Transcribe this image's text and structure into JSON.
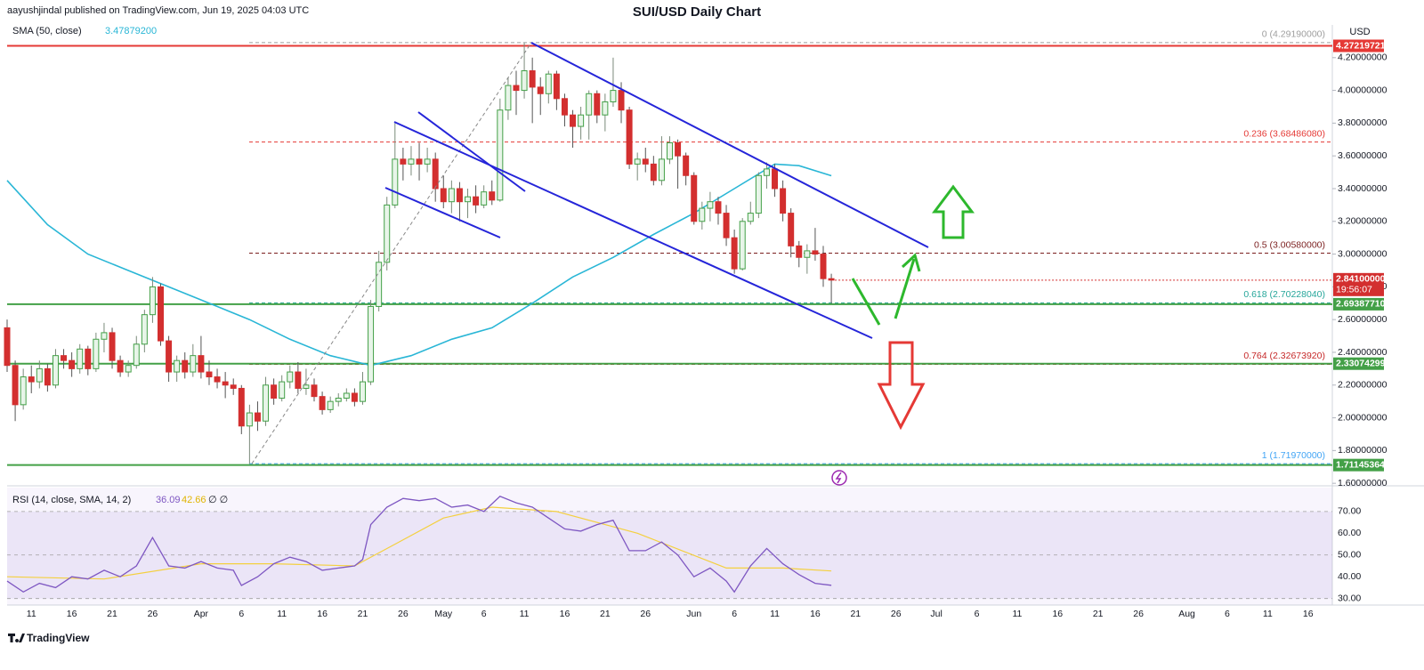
{
  "header": {
    "attribution": "aayushjindal published on TradingView.com, Jun 19, 2025 04:03 UTC",
    "currency": "USD"
  },
  "footer": {
    "brand": "TradingView"
  },
  "chart_data": {
    "type": "candlestick",
    "title": "SUI/USD Daily Chart",
    "up_color": "#43a047",
    "down_color": "#d32f2f",
    "xlim": [
      "Mar 8",
      "Aug 19"
    ],
    "xticks": [
      {
        "value": "Mar 11",
        "label": "11"
      },
      {
        "value": "Mar 16",
        "label": "16"
      },
      {
        "value": "Mar 21",
        "label": "21"
      },
      {
        "value": "Mar 26",
        "label": "26"
      },
      {
        "value": "Apr 1",
        "label": "Apr"
      },
      {
        "value": "Apr 6",
        "label": "6"
      },
      {
        "value": "Apr 11",
        "label": "11"
      },
      {
        "value": "Apr 16",
        "label": "16"
      },
      {
        "value": "Apr 21",
        "label": "21"
      },
      {
        "value": "Apr 26",
        "label": "26"
      },
      {
        "value": "May 1",
        "label": "May"
      },
      {
        "value": "May 6",
        "label": "6"
      },
      {
        "value": "May 11",
        "label": "11"
      },
      {
        "value": "May 16",
        "label": "16"
      },
      {
        "value": "May 21",
        "label": "21"
      },
      {
        "value": "May 26",
        "label": "26"
      },
      {
        "value": "Jun 1",
        "label": "Jun"
      },
      {
        "value": "Jun 6",
        "label": "6"
      },
      {
        "value": "Jun 11",
        "label": "11"
      },
      {
        "value": "Jun 16",
        "label": "16"
      },
      {
        "value": "Jun 21",
        "label": "21"
      },
      {
        "value": "Jun 26",
        "label": "26"
      },
      {
        "value": "Jul 1",
        "label": "Jul"
      },
      {
        "value": "Jul 6",
        "label": "6"
      },
      {
        "value": "Jul 11",
        "label": "11"
      },
      {
        "value": "Jul 16",
        "label": "16"
      },
      {
        "value": "Jul 21",
        "label": "21"
      },
      {
        "value": "Jul 26",
        "label": "26"
      },
      {
        "value": "Aug 1",
        "label": "Aug"
      },
      {
        "value": "Aug 6",
        "label": "6"
      },
      {
        "value": "Aug 11",
        "label": "11"
      },
      {
        "value": "Aug 16",
        "label": "16"
      }
    ],
    "ylim": [
      1.59,
      4.4
    ],
    "yticks": [
      {
        "value": 1.6,
        "label": "1.60000000"
      },
      {
        "value": 1.8,
        "label": "1.80000000"
      },
      {
        "value": 2.0,
        "label": "2.00000000"
      },
      {
        "value": 2.2,
        "label": "2.20000000"
      },
      {
        "value": 2.4,
        "label": "2.40000000"
      },
      {
        "value": 2.6,
        "label": "2.60000000"
      },
      {
        "value": 2.8,
        "label": "2.80000000"
      },
      {
        "value": 3.0,
        "label": "3.00000000"
      },
      {
        "value": 3.2,
        "label": "3.20000000"
      },
      {
        "value": 3.4,
        "label": "3.40000000"
      },
      {
        "value": 3.6,
        "label": "3.60000000"
      },
      {
        "value": 3.8,
        "label": "3.80000000"
      },
      {
        "value": 4.0,
        "label": "4.00000000"
      },
      {
        "value": 4.2,
        "label": "4.20000000"
      }
    ],
    "x": [
      "Mar 8",
      "Mar 9",
      "Mar 10",
      "Mar 11",
      "Mar 12",
      "Mar 13",
      "Mar 14",
      "Mar 15",
      "Mar 16",
      "Mar 17",
      "Mar 18",
      "Mar 19",
      "Mar 20",
      "Mar 21",
      "Mar 22",
      "Mar 23",
      "Mar 24",
      "Mar 25",
      "Mar 26",
      "Mar 27",
      "Mar 28",
      "Mar 29",
      "Mar 30",
      "Mar 31",
      "Apr 1",
      "Apr 2",
      "Apr 3",
      "Apr 4",
      "Apr 5",
      "Apr 6",
      "Apr 7",
      "Apr 8",
      "Apr 9",
      "Apr 10",
      "Apr 11",
      "Apr 12",
      "Apr 13",
      "Apr 14",
      "Apr 15",
      "Apr 16",
      "Apr 17",
      "Apr 18",
      "Apr 19",
      "Apr 20",
      "Apr 21",
      "Apr 22",
      "Apr 23",
      "Apr 24",
      "Apr 25",
      "Apr 26",
      "Apr 27",
      "Apr 28",
      "Apr 29",
      "Apr 30",
      "May 1",
      "May 2",
      "May 3",
      "May 4",
      "May 5",
      "May 6",
      "May 7",
      "May 8",
      "May 9",
      "May 10",
      "May 11",
      "May 12",
      "May 13",
      "May 14",
      "May 15",
      "May 16",
      "May 17",
      "May 18",
      "May 19",
      "May 20",
      "May 21",
      "May 22",
      "May 23",
      "May 24",
      "May 25",
      "May 26",
      "May 27",
      "May 28",
      "May 29",
      "May 30",
      "May 31",
      "Jun 1",
      "Jun 2",
      "Jun 3",
      "Jun 4",
      "Jun 5",
      "Jun 6",
      "Jun 7",
      "Jun 8",
      "Jun 9",
      "Jun 10",
      "Jun 11",
      "Jun 12",
      "Jun 13",
      "Jun 14",
      "Jun 15",
      "Jun 16",
      "Jun 17",
      "Jun 18"
    ],
    "open": [
      2.55,
      2.32,
      2.08,
      2.25,
      2.22,
      2.3,
      2.2,
      2.38,
      2.35,
      2.3,
      2.42,
      2.3,
      2.48,
      2.52,
      2.35,
      2.28,
      2.32,
      2.45,
      2.63,
      2.8,
      2.47,
      2.28,
      2.35,
      2.28,
      2.38,
      2.28,
      2.25,
      2.22,
      2.2,
      2.18,
      1.95,
      2.03,
      1.98,
      2.2,
      2.12,
      2.22,
      2.28,
      2.18,
      2.2,
      2.13,
      2.05,
      2.1,
      2.12,
      2.15,
      2.1,
      2.22,
      2.68,
      2.95,
      3.3,
      3.58,
      3.55,
      3.58,
      3.55,
      3.58,
      3.4,
      3.32,
      3.4,
      3.32,
      3.35,
      3.3,
      3.38,
      3.33,
      3.88,
      4.03,
      4.0,
      4.12,
      4.02,
      3.98,
      4.1,
      3.95,
      3.85,
      3.78,
      3.85,
      3.98,
      3.85,
      3.93,
      4.0,
      3.88,
      3.55,
      3.58,
      3.55,
      3.45,
      3.58,
      3.68,
      3.6,
      3.48,
      3.2,
      3.28,
      3.32,
      3.25,
      3.1,
      2.91,
      3.2,
      3.25,
      3.48,
      3.52,
      3.4,
      3.25,
      3.05,
      2.98,
      3.02,
      3.0,
      2.85
    ],
    "high": [
      2.6,
      2.35,
      2.3,
      2.32,
      2.35,
      2.33,
      2.42,
      2.42,
      2.4,
      2.45,
      2.44,
      2.52,
      2.58,
      2.55,
      2.38,
      2.35,
      2.5,
      2.66,
      2.86,
      2.82,
      2.5,
      2.38,
      2.4,
      2.45,
      2.5,
      2.35,
      2.3,
      2.28,
      2.24,
      2.2,
      2.08,
      2.1,
      2.25,
      2.24,
      2.26,
      2.32,
      2.34,
      2.3,
      2.24,
      2.16,
      2.13,
      2.15,
      2.18,
      2.18,
      2.28,
      2.72,
      3.02,
      3.35,
      3.8,
      3.65,
      3.66,
      3.68,
      3.65,
      3.62,
      3.48,
      3.45,
      3.44,
      3.4,
      3.42,
      3.42,
      3.45,
      3.95,
      4.08,
      4.12,
      4.29,
      4.2,
      4.08,
      4.12,
      4.12,
      3.98,
      3.88,
      3.9,
      4.0,
      4.0,
      3.98,
      4.2,
      4.05,
      3.9,
      3.62,
      3.65,
      3.6,
      3.72,
      3.72,
      3.7,
      3.62,
      3.5,
      3.32,
      3.38,
      3.35,
      3.3,
      3.15,
      3.22,
      3.32,
      3.5,
      3.56,
      3.55,
      3.45,
      3.28,
      3.08,
      3.06,
      3.16,
      3.05,
      2.88
    ],
    "low": [
      2.28,
      1.98,
      2.05,
      2.15,
      2.18,
      2.16,
      2.18,
      2.3,
      2.25,
      2.27,
      2.26,
      2.28,
      2.4,
      2.3,
      2.25,
      2.25,
      2.3,
      2.4,
      2.58,
      2.44,
      2.22,
      2.22,
      2.24,
      2.25,
      2.24,
      2.2,
      2.18,
      2.12,
      2.14,
      1.9,
      1.72,
      1.92,
      1.95,
      2.08,
      2.1,
      2.18,
      2.15,
      2.14,
      2.1,
      2.02,
      2.03,
      2.07,
      2.1,
      2.07,
      2.08,
      2.2,
      2.65,
      2.9,
      3.28,
      3.45,
      3.48,
      3.45,
      3.5,
      3.32,
      3.28,
      3.25,
      3.2,
      3.22,
      3.25,
      3.28,
      3.3,
      3.32,
      3.82,
      3.85,
      3.95,
      3.8,
      3.85,
      3.92,
      3.88,
      3.78,
      3.65,
      3.7,
      3.7,
      3.8,
      3.75,
      3.9,
      3.8,
      3.52,
      3.45,
      3.5,
      3.42,
      3.42,
      3.55,
      3.4,
      3.42,
      3.18,
      3.15,
      3.2,
      3.18,
      3.05,
      2.88,
      2.9,
      3.18,
      3.22,
      3.4,
      3.35,
      3.2,
      2.98,
      2.92,
      2.88,
      2.96,
      2.8,
      2.7
    ],
    "close": [
      2.32,
      2.08,
      2.25,
      2.22,
      2.3,
      2.2,
      2.38,
      2.35,
      2.3,
      2.42,
      2.3,
      2.48,
      2.52,
      2.35,
      2.28,
      2.32,
      2.45,
      2.63,
      2.8,
      2.47,
      2.28,
      2.35,
      2.28,
      2.38,
      2.28,
      2.25,
      2.22,
      2.2,
      2.18,
      1.95,
      2.03,
      1.98,
      2.2,
      2.12,
      2.22,
      2.28,
      2.18,
      2.2,
      2.13,
      2.05,
      2.1,
      2.12,
      2.15,
      2.1,
      2.22,
      2.68,
      2.95,
      3.3,
      3.58,
      3.55,
      3.58,
      3.55,
      3.58,
      3.4,
      3.32,
      3.4,
      3.32,
      3.35,
      3.3,
      3.38,
      3.33,
      3.88,
      4.03,
      4.0,
      4.12,
      4.02,
      3.98,
      4.1,
      3.95,
      3.85,
      3.78,
      3.85,
      3.98,
      3.85,
      3.93,
      4.0,
      3.88,
      3.55,
      3.58,
      3.55,
      3.45,
      3.58,
      3.68,
      3.6,
      3.48,
      3.2,
      3.28,
      3.32,
      3.25,
      3.1,
      2.91,
      3.2,
      3.25,
      3.48,
      3.52,
      3.4,
      3.25,
      3.05,
      2.98,
      3.02,
      3.0,
      2.85,
      2.841
    ],
    "sma": {
      "name": "SMA (50, close)",
      "value_label": "3.47879200",
      "color": "#29b6d6",
      "x": [
        "Mar 8",
        "Mar 13",
        "Mar 18",
        "Mar 23",
        "Mar 28",
        "Apr 2",
        "Apr 7",
        "Apr 12",
        "Apr 17",
        "Apr 22",
        "Apr 27",
        "May 2",
        "May 7",
        "May 12",
        "May 17",
        "May 22",
        "May 27",
        "Jun 1",
        "Jun 6",
        "Jun 11",
        "Jun 14",
        "Jun 18"
      ],
      "values": [
        3.45,
        3.18,
        3.0,
        2.9,
        2.8,
        2.7,
        2.6,
        2.48,
        2.38,
        2.32,
        2.38,
        2.48,
        2.55,
        2.7,
        2.86,
        2.98,
        3.12,
        3.25,
        3.4,
        3.55,
        3.54,
        3.4788
      ]
    },
    "levels": [
      {
        "value": 4.27219721,
        "label": "4.27219721",
        "color": "#e53935"
      },
      {
        "value": 2.6938771,
        "label": "2.69387710",
        "color": "#43a047"
      },
      {
        "value": 2.33074299,
        "label": "2.33074299",
        "color": "#43a047"
      },
      {
        "value": 1.71145364,
        "label": "1.71145364",
        "color": "#43a047"
      }
    ],
    "fib": [
      {
        "value": 4.2919,
        "label": "0 (4.29190000)",
        "color": "#9e9e9e"
      },
      {
        "value": 3.6848608,
        "label": "0.236 (3.68486080)",
        "color": "#e53935"
      },
      {
        "value": 3.0058,
        "label": "0.5 (3.00580000)",
        "color": "#7b1f1f"
      },
      {
        "value": 2.7022804,
        "label": "0.618 (2.70228040)",
        "color": "#26a69a"
      },
      {
        "value": 2.3267392,
        "label": "0.764 (2.32673920)",
        "color": "#c62828"
      },
      {
        "value": 1.7197,
        "label": "1 (1.71970000)",
        "color": "#42a5f5"
      }
    ],
    "last_price": {
      "value": 2.841,
      "label": "2.84100000",
      "countdown": "19:56:07"
    },
    "rsi": {
      "name": "RSI (14, close, SMA, 14, 2)",
      "extra": "∅ ∅",
      "ylim": [
        27,
        81
      ],
      "yticks": [
        {
          "value": 30,
          "label": "30.00"
        },
        {
          "value": 40,
          "label": "40.00"
        },
        {
          "value": 50,
          "label": "50.00"
        },
        {
          "value": 60,
          "label": "60.00"
        },
        {
          "value": 70,
          "label": "70.00"
        }
      ],
      "band": [
        30,
        70
      ],
      "line": {
        "color": "#7e57c2",
        "value_label": "36.09",
        "x": [
          "Mar 8",
          "Mar 10",
          "Mar 12",
          "Mar 14",
          "Mar 16",
          "Mar 18",
          "Mar 20",
          "Mar 22",
          "Mar 24",
          "Mar 26",
          "Mar 28",
          "Mar 30",
          "Apr 1",
          "Apr 3",
          "Apr 5",
          "Apr 6",
          "Apr 8",
          "Apr 10",
          "Apr 12",
          "Apr 14",
          "Apr 16",
          "Apr 18",
          "Apr 20",
          "Apr 21",
          "Apr 22",
          "Apr 24",
          "Apr 26",
          "Apr 28",
          "Apr 30",
          "May 2",
          "May 4",
          "May 6",
          "May 8",
          "May 10",
          "May 12",
          "May 14",
          "May 16",
          "May 18",
          "May 20",
          "May 22",
          "May 24",
          "May 26",
          "May 28",
          "May 30",
          "Jun 1",
          "Jun 3",
          "Jun 5",
          "Jun 6",
          "Jun 8",
          "Jun 10",
          "Jun 12",
          "Jun 14",
          "Jun 16",
          "Jun 18"
        ],
        "values": [
          38,
          33,
          37,
          35,
          40,
          39,
          43,
          40,
          45,
          58,
          45,
          44,
          47,
          44,
          43,
          36,
          40,
          46,
          49,
          47,
          43,
          44,
          45,
          48,
          64,
          72,
          76,
          75,
          76,
          72,
          73,
          70,
          77,
          74,
          72,
          67,
          62,
          61,
          64,
          66,
          52,
          52,
          56,
          50,
          40,
          44,
          38,
          33,
          45,
          53,
          46,
          41,
          37,
          36.09
        ]
      },
      "sma": {
        "color": "#f4d03f",
        "value_label": "42.66",
        "x": [
          "Mar 8",
          "Mar 20",
          "Apr 1",
          "Apr 10",
          "Apr 20",
          "Apr 25",
          "May 1",
          "May 7",
          "May 15",
          "May 25",
          "Jun 5",
          "Jun 12",
          "Jun 18"
        ],
        "values": [
          40,
          39,
          46,
          46,
          45,
          55,
          67,
          72,
          70,
          60,
          44,
          44,
          42.66
        ]
      }
    }
  }
}
